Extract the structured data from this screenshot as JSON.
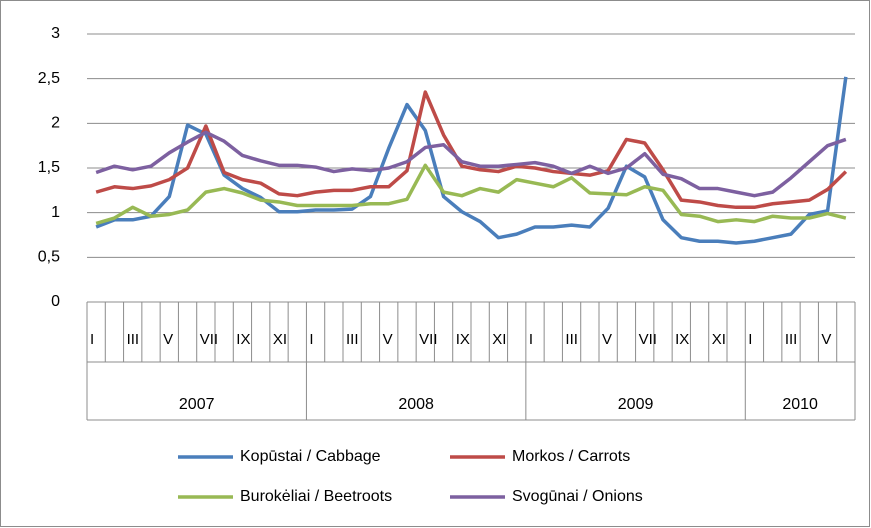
{
  "chart_data": {
    "type": "line",
    "categories": [
      "I",
      null,
      "III",
      null,
      "V",
      null,
      "VII",
      null,
      "IX",
      null,
      "XI",
      null,
      "I",
      null,
      "III",
      null,
      "V",
      null,
      "VII",
      null,
      "IX",
      null,
      "XI",
      null,
      "I",
      null,
      "III",
      null,
      "V",
      null,
      "VII",
      null,
      "IX",
      null,
      "XI",
      null,
      "I",
      null,
      "III",
      null,
      "V",
      null
    ],
    "years": [
      "2007",
      "2008",
      "2009",
      "2010"
    ],
    "ylim": [
      0,
      3
    ],
    "yticks": [
      0,
      {
        "value": 0.5,
        "label": "0,5"
      },
      1,
      {
        "value": 1.5,
        "label": "1,5"
      },
      2,
      {
        "value": 2.5,
        "label": "2,5"
      },
      3
    ],
    "grid": true,
    "legend": "bottom",
    "series": [
      {
        "name": "Kopūstai / Cabbage",
        "color": "#4a7ebb",
        "values": [
          0.84,
          0.92,
          0.92,
          0.96,
          1.18,
          1.98,
          1.88,
          1.42,
          1.27,
          1.17,
          1.01,
          1.01,
          1.03,
          1.03,
          1.04,
          1.18,
          1.72,
          2.21,
          1.92,
          1.18,
          1.01,
          0.9,
          0.72,
          0.76,
          0.84,
          0.84,
          0.86,
          0.84,
          1.05,
          1.52,
          1.4,
          0.92,
          0.72,
          0.68,
          0.68,
          0.66,
          0.68,
          0.72,
          0.76,
          0.98,
          1.02,
          2.52
        ]
      },
      {
        "name": "Morkos / Carrots",
        "color": "#be4b48",
        "values": [
          1.23,
          1.29,
          1.27,
          1.3,
          1.37,
          1.5,
          1.97,
          1.45,
          1.37,
          1.33,
          1.21,
          1.19,
          1.23,
          1.25,
          1.25,
          1.29,
          1.29,
          1.47,
          2.35,
          1.87,
          1.52,
          1.48,
          1.46,
          1.52,
          1.5,
          1.46,
          1.44,
          1.42,
          1.47,
          1.82,
          1.78,
          1.48,
          1.14,
          1.12,
          1.08,
          1.06,
          1.06,
          1.1,
          1.12,
          1.14,
          1.26,
          1.46
        ]
      },
      {
        "name": "Burokėliai / Beetroots",
        "color": "#98b954",
        "values": [
          0.88,
          0.94,
          1.06,
          0.96,
          0.98,
          1.03,
          1.23,
          1.27,
          1.22,
          1.14,
          1.12,
          1.08,
          1.08,
          1.08,
          1.08,
          1.1,
          1.1,
          1.15,
          1.53,
          1.23,
          1.19,
          1.27,
          1.23,
          1.37,
          1.33,
          1.29,
          1.39,
          1.22,
          1.21,
          1.2,
          1.29,
          1.25,
          0.98,
          0.96,
          0.9,
          0.92,
          0.9,
          0.96,
          0.94,
          0.94,
          0.99,
          0.94
        ]
      },
      {
        "name": "Svogūnai / Onions",
        "color": "#7d60a0",
        "values": [
          1.45,
          1.52,
          1.48,
          1.52,
          1.67,
          1.79,
          1.9,
          1.8,
          1.64,
          1.58,
          1.53,
          1.53,
          1.51,
          1.46,
          1.49,
          1.47,
          1.5,
          1.57,
          1.73,
          1.76,
          1.57,
          1.52,
          1.52,
          1.54,
          1.56,
          1.52,
          1.44,
          1.52,
          1.44,
          1.5,
          1.66,
          1.43,
          1.38,
          1.27,
          1.27,
          1.23,
          1.19,
          1.23,
          1.39,
          1.57,
          1.75,
          1.82
        ]
      }
    ]
  }
}
